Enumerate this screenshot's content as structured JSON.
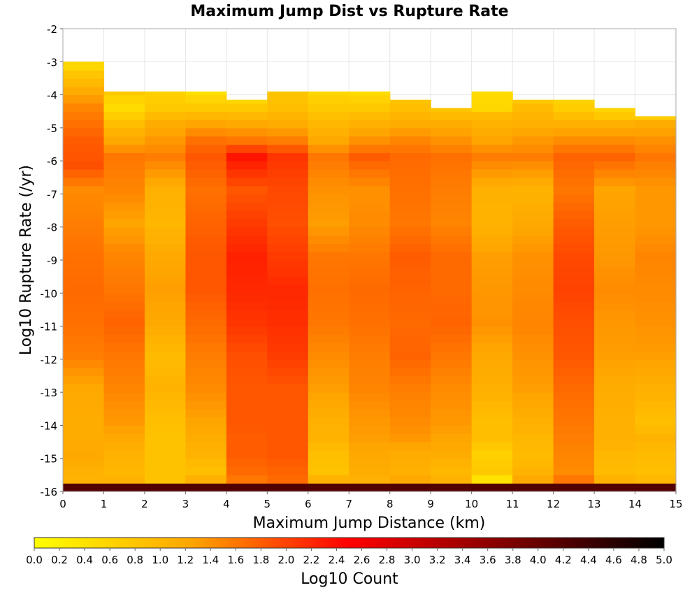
{
  "chart_data": {
    "type": "heatmap",
    "title": "Maximum Jump Dist vs Rupture Rate",
    "xlabel": "Maximum Jump Distance (km)",
    "ylabel": "Log10 Rupture Rate (/yr)",
    "xlim": [
      0,
      15
    ],
    "ylim": [
      -16,
      -2
    ],
    "x_ticks": [
      "0",
      "1",
      "2",
      "3",
      "4",
      "5",
      "6",
      "7",
      "8",
      "9",
      "10",
      "11",
      "12",
      "13",
      "14",
      "15"
    ],
    "y_ticks": [
      "-2",
      "-3",
      "-4",
      "-5",
      "-6",
      "-7",
      "-8",
      "-9",
      "-10",
      "-11",
      "-12",
      "-13",
      "-14",
      "-15",
      "-16"
    ],
    "x_bin_width": 1,
    "y_bin_width": 0.25,
    "y_start": -16,
    "grid": true,
    "colorbar": {
      "label": "Log10 Count",
      "min": 0.0,
      "max": 5.0,
      "ticks": [
        "0.0",
        "0.2",
        "0.4",
        "0.6",
        "0.8",
        "1.0",
        "1.2",
        "1.4",
        "1.6",
        "1.8",
        "2.0",
        "2.2",
        "2.4",
        "2.6",
        "2.8",
        "3.0",
        "3.2",
        "3.4",
        "3.6",
        "3.8",
        "4.0",
        "4.2",
        "4.4",
        "4.6",
        "4.8",
        "5.0"
      ],
      "colormap": [
        "#ffff00",
        "#ffa500",
        "#ff0000",
        "#800000",
        "#000000"
      ],
      "colormap_stops": [
        0.0,
        1.25,
        2.5,
        3.75,
        5.0
      ]
    },
    "columns": [
      {
        "x": 0,
        "top": -3.0,
        "profile": [
          [
            -16,
            4.2
          ],
          [
            -15.75,
            1.05
          ],
          [
            -15.5,
            1.1
          ],
          [
            -15,
            1.2
          ],
          [
            -14.5,
            1.15
          ],
          [
            -14,
            1.15
          ],
          [
            -13,
            1.2
          ],
          [
            -12,
            1.55
          ],
          [
            -11,
            1.65
          ],
          [
            -10,
            1.7
          ],
          [
            -9,
            1.65
          ],
          [
            -8,
            1.55
          ],
          [
            -7,
            1.45
          ],
          [
            -6.25,
            1.9
          ],
          [
            -5.5,
            1.8
          ],
          [
            -4.5,
            1.5
          ],
          [
            -3.5,
            0.8
          ],
          [
            -3,
            0.3
          ]
        ]
      },
      {
        "x": 1,
        "top": -3.9,
        "profile": [
          [
            -16,
            4.2
          ],
          [
            -15.75,
            1.05
          ],
          [
            -15.5,
            1.0
          ],
          [
            -15,
            1.05
          ],
          [
            -14.5,
            1.2
          ],
          [
            -14,
            1.35
          ],
          [
            -13,
            1.5
          ],
          [
            -12,
            1.6
          ],
          [
            -11,
            1.75
          ],
          [
            -10,
            1.6
          ],
          [
            -9,
            1.5
          ],
          [
            -8,
            1.25
          ],
          [
            -7,
            1.5
          ],
          [
            -6,
            1.6
          ],
          [
            -5.5,
            1.2
          ],
          [
            -5,
            0.9
          ],
          [
            -4.5,
            0.5
          ],
          [
            -4,
            0.75
          ]
        ]
      },
      {
        "x": 2,
        "top": -3.9,
        "profile": [
          [
            -16,
            4.2
          ],
          [
            -15.75,
            0.85
          ],
          [
            -15.5,
            0.85
          ],
          [
            -15,
            0.85
          ],
          [
            -14.5,
            0.85
          ],
          [
            -14,
            0.9
          ],
          [
            -13,
            1.05
          ],
          [
            -12,
            0.95
          ],
          [
            -11,
            1.2
          ],
          [
            -10,
            1.3
          ],
          [
            -9,
            1.2
          ],
          [
            -8,
            1.0
          ],
          [
            -7,
            1.1
          ],
          [
            -6,
            1.55
          ],
          [
            -5.5,
            1.35
          ],
          [
            -5,
            1.15
          ],
          [
            -4.5,
            0.75
          ],
          [
            -4,
            0.65
          ]
        ]
      },
      {
        "x": 3,
        "top": -3.9,
        "profile": [
          [
            -16,
            4.2
          ],
          [
            -15.75,
            1.1
          ],
          [
            -15.5,
            0.9
          ],
          [
            -15,
            1.05
          ],
          [
            -14.5,
            1.15
          ],
          [
            -14,
            1.25
          ],
          [
            -13,
            1.45
          ],
          [
            -12,
            1.55
          ],
          [
            -11,
            1.7
          ],
          [
            -10,
            1.85
          ],
          [
            -9,
            1.85
          ],
          [
            -8,
            1.75
          ],
          [
            -7,
            1.65
          ],
          [
            -6,
            1.85
          ],
          [
            -5.5,
            1.65
          ],
          [
            -5,
            1.25
          ],
          [
            -4.5,
            0.75
          ],
          [
            -4,
            0.45
          ]
        ]
      },
      {
        "x": 4,
        "top": -4.15,
        "profile": [
          [
            -16,
            4.2
          ],
          [
            -15.75,
            1.6
          ],
          [
            -15.5,
            1.7
          ],
          [
            -15,
            1.8
          ],
          [
            -14.5,
            1.8
          ],
          [
            -14,
            1.85
          ],
          [
            -13,
            1.85
          ],
          [
            -12,
            1.9
          ],
          [
            -11,
            2.1
          ],
          [
            -10,
            2.2
          ],
          [
            -9,
            2.25
          ],
          [
            -8,
            2.05
          ],
          [
            -7,
            1.85
          ],
          [
            -6,
            2.35
          ],
          [
            -5.5,
            1.6
          ],
          [
            -5,
            1.2
          ],
          [
            -4.5,
            0.75
          ],
          [
            -4.25,
            0.55
          ]
        ]
      },
      {
        "x": 5,
        "top": -3.9,
        "profile": [
          [
            -16,
            4.2
          ],
          [
            -15.75,
            1.7
          ],
          [
            -15.5,
            1.75
          ],
          [
            -15,
            1.85
          ],
          [
            -14.5,
            1.85
          ],
          [
            -14,
            1.85
          ],
          [
            -13,
            1.85
          ],
          [
            -12,
            2.05
          ],
          [
            -11,
            2.15
          ],
          [
            -10,
            2.2
          ],
          [
            -9,
            2.05
          ],
          [
            -8,
            1.9
          ],
          [
            -7,
            1.95
          ],
          [
            -6,
            2.1
          ],
          [
            -5.5,
            1.55
          ],
          [
            -5,
            1.15
          ],
          [
            -4.5,
            0.9
          ],
          [
            -4,
            0.8
          ]
        ]
      },
      {
        "x": 6,
        "top": -3.9,
        "profile": [
          [
            -16,
            4.2
          ],
          [
            -15.75,
            1.05
          ],
          [
            -15.5,
            0.85
          ],
          [
            -15,
            0.9
          ],
          [
            -14.5,
            1.05
          ],
          [
            -14,
            1.1
          ],
          [
            -13,
            1.3
          ],
          [
            -12,
            1.45
          ],
          [
            -11,
            1.6
          ],
          [
            -10,
            1.65
          ],
          [
            -9,
            1.6
          ],
          [
            -8,
            1.3
          ],
          [
            -7,
            1.4
          ],
          [
            -6,
            1.6
          ],
          [
            -5.5,
            1.2
          ],
          [
            -5,
            1.0
          ],
          [
            -4.5,
            0.75
          ],
          [
            -4,
            0.55
          ]
        ]
      },
      {
        "x": 7,
        "top": -3.9,
        "profile": [
          [
            -16,
            4.2
          ],
          [
            -15.75,
            1.1
          ],
          [
            -15.5,
            1.15
          ],
          [
            -15,
            1.2
          ],
          [
            -14.5,
            1.3
          ],
          [
            -14,
            1.35
          ],
          [
            -13,
            1.5
          ],
          [
            -12,
            1.55
          ],
          [
            -11,
            1.65
          ],
          [
            -10,
            1.7
          ],
          [
            -9,
            1.6
          ],
          [
            -8,
            1.45
          ],
          [
            -7,
            1.4
          ],
          [
            -6,
            1.8
          ],
          [
            -5.5,
            1.4
          ],
          [
            -5,
            1.1
          ],
          [
            -4.5,
            0.75
          ],
          [
            -4,
            0.5
          ]
        ]
      },
      {
        "x": 8,
        "top": -4.15,
        "profile": [
          [
            -16,
            4.2
          ],
          [
            -15.75,
            1.2
          ],
          [
            -15.5,
            1.1
          ],
          [
            -15,
            1.15
          ],
          [
            -14.5,
            1.35
          ],
          [
            -14,
            1.45
          ],
          [
            -13,
            1.55
          ],
          [
            -12,
            1.75
          ],
          [
            -11,
            1.7
          ],
          [
            -10,
            1.75
          ],
          [
            -9,
            1.8
          ],
          [
            -8,
            1.6
          ],
          [
            -7,
            1.65
          ],
          [
            -6,
            1.7
          ],
          [
            -5.5,
            1.5
          ],
          [
            -5,
            1.15
          ],
          [
            -4.5,
            0.9
          ],
          [
            -4.25,
            0.8
          ]
        ]
      },
      {
        "x": 9,
        "top": -4.4,
        "profile": [
          [
            -16,
            4.2
          ],
          [
            -15.75,
            1.05
          ],
          [
            -15.5,
            1.0
          ],
          [
            -15,
            1.15
          ],
          [
            -14.5,
            1.25
          ],
          [
            -14,
            1.35
          ],
          [
            -13,
            1.45
          ],
          [
            -12,
            1.6
          ],
          [
            -11,
            1.75
          ],
          [
            -10,
            1.7
          ],
          [
            -9,
            1.7
          ],
          [
            -8,
            1.5
          ],
          [
            -7,
            1.55
          ],
          [
            -6,
            1.65
          ],
          [
            -5.5,
            1.4
          ],
          [
            -5,
            1.15
          ],
          [
            -4.75,
            0.95
          ],
          [
            -4.5,
            0.8
          ]
        ]
      },
      {
        "x": 10,
        "top": -3.9,
        "profile": [
          [
            -16,
            4.2
          ],
          [
            -15.75,
            0.4
          ],
          [
            -15.5,
            0.75
          ],
          [
            -15,
            0.65
          ],
          [
            -14.5,
            0.9
          ],
          [
            -14,
            0.9
          ],
          [
            -13,
            1.1
          ],
          [
            -12,
            1.2
          ],
          [
            -11,
            1.4
          ],
          [
            -10,
            1.35
          ],
          [
            -9,
            1.3
          ],
          [
            -8,
            1.05
          ],
          [
            -7,
            1.1
          ],
          [
            -6,
            1.55
          ],
          [
            -5.5,
            1.25
          ],
          [
            -5,
            1.05
          ],
          [
            -4.75,
            0.95
          ],
          [
            -4.5,
            0.55
          ],
          [
            -4,
            0.5
          ]
        ]
      },
      {
        "x": 11,
        "top": -4.15,
        "profile": [
          [
            -16,
            4.2
          ],
          [
            -15.75,
            1.2
          ],
          [
            -15.5,
            1.05
          ],
          [
            -15,
            0.95
          ],
          [
            -14.5,
            1.0
          ],
          [
            -14,
            1.1
          ],
          [
            -13,
            1.3
          ],
          [
            -12,
            1.4
          ],
          [
            -11,
            1.5
          ],
          [
            -10,
            1.45
          ],
          [
            -9,
            1.4
          ],
          [
            -8,
            1.2
          ],
          [
            -7,
            1.05
          ],
          [
            -6,
            1.55
          ],
          [
            -5.5,
            1.35
          ],
          [
            -5,
            1.1
          ],
          [
            -4.5,
            0.95
          ],
          [
            -4.25,
            0.75
          ]
        ]
      },
      {
        "x": 12,
        "top": -4.15,
        "profile": [
          [
            -16,
            4.2
          ],
          [
            -15.75,
            1.6
          ],
          [
            -15.5,
            1.45
          ],
          [
            -15,
            1.5
          ],
          [
            -14.5,
            1.55
          ],
          [
            -14,
            1.6
          ],
          [
            -13,
            1.7
          ],
          [
            -12,
            1.85
          ],
          [
            -11,
            1.9
          ],
          [
            -10,
            2.0
          ],
          [
            -9,
            1.95
          ],
          [
            -8,
            1.8
          ],
          [
            -7,
            1.6
          ],
          [
            -6,
            1.75
          ],
          [
            -5.5,
            1.45
          ],
          [
            -5,
            1.1
          ],
          [
            -4.5,
            0.7
          ],
          [
            -4.25,
            0.6
          ]
        ]
      },
      {
        "x": 13,
        "top": -4.4,
        "profile": [
          [
            -16,
            4.2
          ],
          [
            -15.75,
            1.05
          ],
          [
            -15.5,
            0.95
          ],
          [
            -15,
            1.0
          ],
          [
            -14.5,
            1.1
          ],
          [
            -14,
            1.1
          ],
          [
            -13,
            1.15
          ],
          [
            -12,
            1.3
          ],
          [
            -11,
            1.35
          ],
          [
            -10,
            1.45
          ],
          [
            -9,
            1.35
          ],
          [
            -8,
            1.3
          ],
          [
            -7,
            1.25
          ],
          [
            -6,
            1.75
          ],
          [
            -5.5,
            1.45
          ],
          [
            -5,
            1.1
          ],
          [
            -4.75,
            0.75
          ],
          [
            -4.5,
            0.6
          ]
        ]
      },
      {
        "x": 14,
        "top": -4.65,
        "profile": [
          [
            -16,
            4.2
          ],
          [
            -15.75,
            1.0
          ],
          [
            -15.5,
            0.9
          ],
          [
            -15,
            0.95
          ],
          [
            -14.5,
            1.05
          ],
          [
            -14,
            0.9
          ],
          [
            -13,
            1.1
          ],
          [
            -12,
            1.3
          ],
          [
            -11,
            1.4
          ],
          [
            -10,
            1.45
          ],
          [
            -9,
            1.5
          ],
          [
            -8,
            1.35
          ],
          [
            -7,
            1.35
          ],
          [
            -6,
            1.6
          ],
          [
            -5.5,
            1.4
          ],
          [
            -5,
            1.15
          ],
          [
            -4.75,
            0.7
          ]
        ]
      }
    ]
  }
}
